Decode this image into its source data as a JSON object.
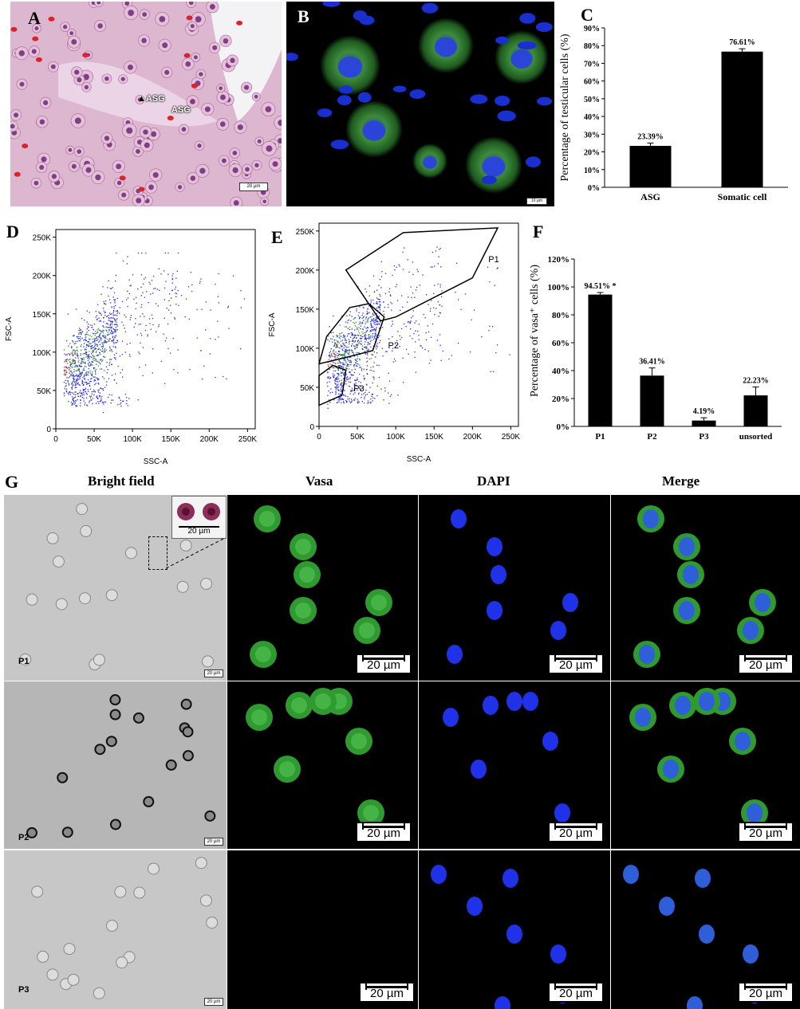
{
  "panels": {
    "A": {
      "letter": "A",
      "labels": [
        "ASG",
        "ASG"
      ],
      "scale": "20 µm"
    },
    "B": {
      "letter": "B",
      "scale": "10 µm"
    },
    "C": {
      "letter": "C"
    },
    "D": {
      "letter": "D"
    },
    "E": {
      "letter": "E",
      "gates": [
        "P1",
        "P2",
        "P3"
      ]
    },
    "F": {
      "letter": "F"
    },
    "G": {
      "letter": "G",
      "columns": [
        "Bright field",
        "Vasa",
        "DAPI",
        "Merge"
      ],
      "rows": [
        "P1",
        "P2",
        "P3"
      ],
      "scale": "20 µm",
      "inset_scale": "20 µm",
      "bf_scale": "20 µm"
    }
  },
  "chart_data": [
    {
      "id": "C",
      "type": "bar",
      "categories": [
        "ASG",
        "Somatic cell"
      ],
      "values": [
        23.39,
        76.61
      ],
      "data_labels": [
        "23.39%",
        "76.61%"
      ],
      "ylabel": "Percentage of testicular cells (%)",
      "yticks": [
        "0%",
        "10%",
        "20%",
        "30%",
        "40%",
        "50%",
        "60%",
        "70%",
        "80%",
        "90%"
      ],
      "ylim": [
        0,
        90
      ],
      "error": [
        1.6,
        1.6
      ]
    },
    {
      "id": "D",
      "type": "scatter",
      "xlabel": "SSC-A",
      "ylabel": "FSC-A",
      "xticks": [
        "0",
        "50K",
        "100K",
        "150K",
        "200K",
        "250K"
      ],
      "yticks": [
        "0",
        "50K",
        "100K",
        "150K",
        "200K",
        "250K"
      ],
      "xlim": [
        0,
        260000
      ],
      "ylim": [
        0,
        260000
      ]
    },
    {
      "id": "E",
      "type": "scatter",
      "xlabel": "SSC-A",
      "ylabel": "FSC-A",
      "xticks": [
        "0",
        "50K",
        "100K",
        "150K",
        "200K",
        "250K"
      ],
      "yticks": [
        "0",
        "50K",
        "100K",
        "150K",
        "200K",
        "250K"
      ],
      "xlim": [
        0,
        260000
      ],
      "ylim": [
        0,
        260000
      ],
      "gates": [
        {
          "name": "P1",
          "points": [
            [
              35000,
              200000
            ],
            [
              110000,
              248000
            ],
            [
              233000,
              254000
            ],
            [
              200000,
              190000
            ],
            [
              100000,
              140000
            ],
            [
              80000,
              135000
            ]
          ]
        },
        {
          "name": "P2",
          "points": [
            [
              0,
              80000
            ],
            [
              10000,
              115000
            ],
            [
              40000,
              152000
            ],
            [
              65000,
              157000
            ],
            [
              85000,
              140000
            ],
            [
              70000,
              97000
            ],
            [
              30000,
              87000
            ]
          ]
        },
        {
          "name": "P3",
          "points": [
            [
              0,
              27000
            ],
            [
              30000,
              40000
            ],
            [
              35000,
              72000
            ],
            [
              18000,
              78000
            ],
            [
              0,
              65000
            ]
          ]
        }
      ]
    },
    {
      "id": "F",
      "type": "bar",
      "categories": [
        "P1",
        "P2",
        "P3",
        "unsorted"
      ],
      "values": [
        94.51,
        36.41,
        4.19,
        22.23
      ],
      "data_labels": [
        "94.51% *",
        "36.41%",
        "4.19%",
        "22.23%"
      ],
      "ylabel": "Percentage of vasa⁺ cells (%)",
      "yticks": [
        "0%",
        "20%",
        "40%",
        "60%",
        "80%",
        "100%",
        "120%"
      ],
      "ylim": [
        0,
        120
      ],
      "error": [
        1.5,
        5.5,
        2.0,
        6.0
      ]
    }
  ]
}
